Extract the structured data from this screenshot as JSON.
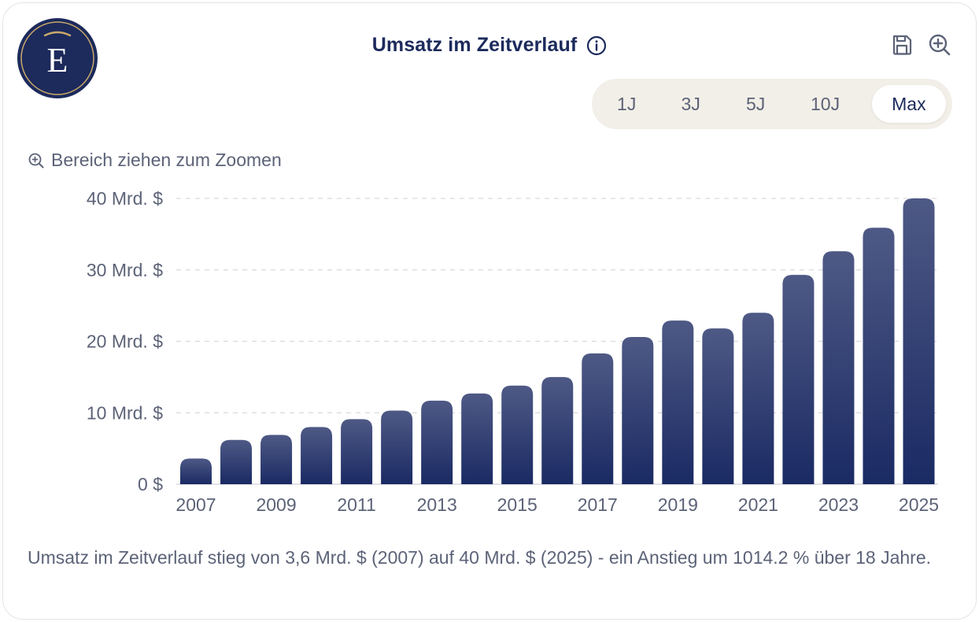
{
  "header": {
    "title": "Umsatz im Zeitverlauf",
    "logo_letter": "E"
  },
  "icons": {
    "info": "info-icon",
    "save": "save-icon",
    "zoom": "zoom-in-icon",
    "hint": "zoom-in-icon"
  },
  "range_selector": {
    "options": [
      "1J",
      "3J",
      "5J",
      "10J",
      "Max"
    ],
    "selected": "Max"
  },
  "hint": {
    "text": "Bereich ziehen zum Zoomen"
  },
  "summary": {
    "text": "Umsatz im Zeitverlauf stieg von 3,6 Mrd. $ (2007) auf 40 Mrd. $ (2025) - ein Anstieg um 1014.2 % über 18 Jahre."
  },
  "colors": {
    "brand_navy": "#1c2a5c",
    "bar_top": "#4e5985",
    "bar_bottom": "#1a2a63",
    "logo_gold": "#c9a86a",
    "range_bg": "#f2efe8",
    "grid": "#d9d9de",
    "text_muted": "#5c6378"
  },
  "chart_data": {
    "type": "bar",
    "categories": [
      "2007",
      "2008",
      "2009",
      "2010",
      "2011",
      "2012",
      "2013",
      "2014",
      "2015",
      "2016",
      "2017",
      "2018",
      "2019",
      "2020",
      "2021",
      "2022",
      "2023",
      "2024",
      "2025"
    ],
    "x_tick_labels": [
      "2007",
      "2009",
      "2011",
      "2013",
      "2015",
      "2017",
      "2019",
      "2021",
      "2023",
      "2025"
    ],
    "series": [
      {
        "values": [
          3.6,
          6.2,
          6.9,
          8.0,
          9.1,
          10.3,
          11.7,
          12.7,
          13.8,
          15.0,
          18.3,
          20.6,
          22.9,
          21.8,
          24.0,
          29.3,
          32.6,
          35.9,
          40.0
        ]
      }
    ],
    "y_ticks": [
      0,
      10,
      20,
      30,
      40
    ],
    "y_tick_labels": [
      "0 $",
      "10 Mrd. $",
      "20 Mrd. $",
      "30 Mrd. $",
      "40 Mrd. $"
    ],
    "ylim": [
      0,
      40
    ],
    "grid": true,
    "legend": "none",
    "title": "",
    "xlabel": "",
    "ylabel": ""
  }
}
